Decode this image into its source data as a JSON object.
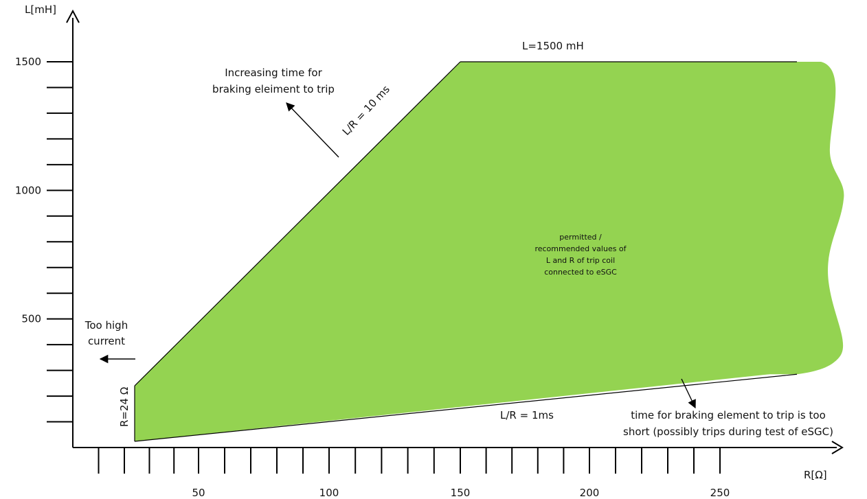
{
  "chart_data": {
    "type": "area",
    "title": "",
    "xlabel": "R[Ω]",
    "ylabel": "L[mH]",
    "x_ticks": [
      50,
      100,
      150,
      200,
      250
    ],
    "y_ticks": [
      500,
      1000,
      1500
    ],
    "xlim": [
      0,
      285
    ],
    "ylim": [
      0,
      1600
    ],
    "grid": false,
    "colors": {
      "region_fill": "#94d351",
      "line": "#000000"
    },
    "region": {
      "label_lines": [
        "permitted /",
        "recommended values of",
        "L and R of trip coil",
        "connected to eSGC"
      ]
    },
    "boundaries": [
      {
        "name": "L/R = 10 ms",
        "label": "L/R = 10 ms",
        "points": [
          [
            24,
            240
          ],
          [
            150,
            1500
          ]
        ]
      },
      {
        "name": "L=1500 mH",
        "label": "L=1500 mH",
        "points": [
          [
            150,
            1500
          ],
          [
            285,
            1500
          ]
        ]
      },
      {
        "name": "L/R = 1ms",
        "label": "L/R = 1ms",
        "points": [
          [
            24,
            24
          ],
          [
            285,
            285
          ]
        ]
      },
      {
        "name": "R=24 Ω",
        "label": "R=24 Ω",
        "points": [
          [
            24,
            24
          ],
          [
            24,
            240
          ]
        ]
      }
    ],
    "annotations": {
      "increasing_time": [
        "Increasing time for",
        "braking eleiment to trip"
      ],
      "too_high_current": [
        "Too high",
        "current"
      ],
      "too_short": [
        "time for braking element to trip is too",
        "short  (possibly trips during test of eSGC)"
      ]
    }
  }
}
